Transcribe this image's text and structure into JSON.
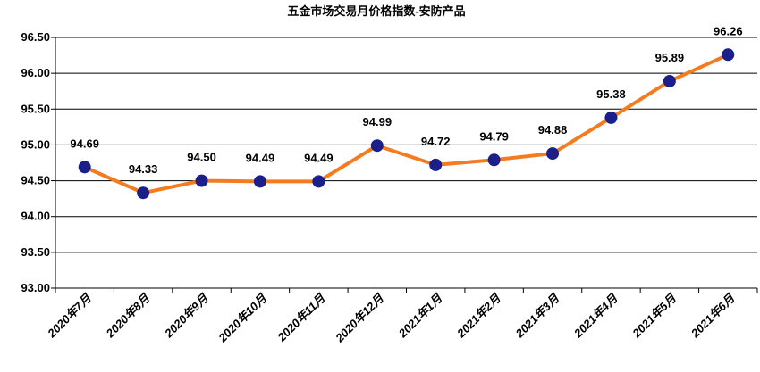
{
  "chart_data": {
    "type": "line",
    "title": "五金市场交易月价格指数-安防产品",
    "xlabel": "",
    "ylabel": "",
    "categories": [
      "2020年7月",
      "2020年8月",
      "2020年9月",
      "2020年10月",
      "2020年11月",
      "2020年12月",
      "2021年1月",
      "2021年2月",
      "2021年3月",
      "2021年4月",
      "2021年5月",
      "2021年6月"
    ],
    "series": [
      {
        "values": [
          94.69,
          94.33,
          94.5,
          94.49,
          94.49,
          94.99,
          94.72,
          94.79,
          94.88,
          95.38,
          95.89,
          96.26
        ],
        "labels": [
          "94.69",
          "94.33",
          "94.50",
          "94.49",
          "94.49",
          "94.99",
          "94.72",
          "94.79",
          "94.88",
          "95.38",
          "95.89",
          "96.26"
        ]
      }
    ],
    "ylim": [
      93.0,
      96.5
    ],
    "yticks": [
      "93.00",
      "93.50",
      "94.00",
      "94.50",
      "95.00",
      "95.50",
      "96.00",
      "96.50"
    ],
    "grid": true,
    "legend": "none",
    "colors": {
      "line": "#F47B20",
      "marker": "#1B1F8A",
      "grid": "#000000"
    }
  }
}
